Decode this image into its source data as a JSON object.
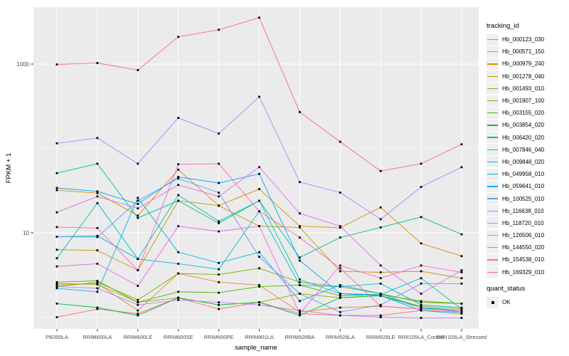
{
  "chart_data": {
    "type": "line",
    "title": "",
    "xlabel": "sample_name",
    "ylabel": "FPKM + 1",
    "y_scale": "log10",
    "y_tick_labels": [
      "1000",
      "10"
    ],
    "y_tick_values": [
      1000,
      10
    ],
    "y_minor_gridline_values": [
      100,
      1
    ],
    "ylim": [
      0.73,
      4700
    ],
    "grid": "on",
    "panel_background": "#EBEBEB",
    "gridline_color": "#FFFFFF",
    "point_color": "#000000",
    "axis_text_color": "#4D4D4D",
    "legend_position": "right",
    "categories": [
      "PB350LA",
      "RRIM600LA",
      "RRIM600LE",
      "RRIM600SE",
      "RRIM600PE",
      "RRIM901LA",
      "RRIM928BA",
      "RRIM928LA",
      "RRIM928LE",
      "RRII105LA_Control",
      "RRII105LA_Stressed"
    ],
    "legend_title": "tracking_id",
    "series": [
      {
        "name": "Hb_000123_030",
        "color": "#F8766D",
        "values": [
          1.0,
          1.25,
          1.1,
          1.7,
          1.25,
          1.5,
          1.1,
          1.05,
          1.05,
          1.2,
          1.15
        ]
      },
      {
        "name": "Hb_000571_150",
        "color": "#E98A2C",
        "values": [
          2.4,
          2.5,
          1.2,
          3.3,
          2.6,
          2.4,
          1.15,
          1.3,
          1.35,
          1.25,
          1.2
        ]
      },
      {
        "name": "Hb_000979_240",
        "color": "#D89000",
        "values": [
          32,
          29.6,
          16,
          56,
          21,
          33,
          12,
          11.5,
          20,
          7.5,
          5.3
        ]
      },
      {
        "name": "Hb_001278_040",
        "color": "#C09B00",
        "values": [
          6.3,
          6.2,
          3.6,
          24,
          21,
          12,
          11.6,
          3.5,
          3.4,
          3.5,
          2.9
        ]
      },
      {
        "name": "Hb_001493_010",
        "color": "#A3A500",
        "values": [
          2.5,
          2.45,
          1.5,
          1.7,
          1.4,
          1.5,
          1.9,
          1.7,
          1.8,
          1.35,
          1.25
        ]
      },
      {
        "name": "Hb_001907_100",
        "color": "#7CAE00",
        "values": [
          2.3,
          2.6,
          1.6,
          3.3,
          3.2,
          3.8,
          2.6,
          2.3,
          1.9,
          1.5,
          1.45
        ]
      },
      {
        "name": "Hb_003155_020",
        "color": "#49B500",
        "values": [
          2.6,
          2.7,
          1.5,
          2.0,
          1.95,
          2.3,
          2.4,
          1.8,
          1.85,
          1.55,
          1.45
        ]
      },
      {
        "name": "Hb_003854_020",
        "color": "#00BB44",
        "values": [
          1.45,
          1.3,
          1.05,
          1.7,
          1.4,
          1.5,
          1.05,
          1.7,
          1.8,
          1.3,
          1.2
        ]
      },
      {
        "name": "Hb_006420_020",
        "color": "#00C08B",
        "values": [
          51,
          66,
          15,
          24,
          13,
          24,
          5.1,
          8.8,
          11.6,
          15.4,
          9.6
        ]
      },
      {
        "name": "Hb_007846_040",
        "color": "#00C0B4",
        "values": [
          5.0,
          22.5,
          4.9,
          28,
          13.7,
          24,
          2.8,
          1.9,
          1.85,
          2.9,
          1.25
        ]
      },
      {
        "name": "Hb_009848_020",
        "color": "#00BDD4",
        "values": [
          9.0,
          9.2,
          4.9,
          4.3,
          3.7,
          18,
          2.4,
          2.3,
          2.5,
          1.4,
          1.3
        ]
      },
      {
        "name": "Hb_049958_010",
        "color": "#00B5EC",
        "values": [
          2.2,
          2.0,
          26,
          5.9,
          4.4,
          5.9,
          1.55,
          2.4,
          1.9,
          1.3,
          1.15
        ]
      },
      {
        "name": "Hb_059641_010",
        "color": "#00A6FF",
        "values": [
          34,
          31,
          22,
          46,
          39,
          50,
          4.7,
          1.9,
          1.8,
          1.2,
          1.1
        ]
      },
      {
        "name": "Hb_100525_010",
        "color": "#619CFF",
        "values": [
          9.0,
          8.9,
          24,
          44,
          30,
          5.2,
          1.9,
          1.15,
          1.4,
          2.5,
          2.5
        ]
      },
      {
        "name": "Hb_116638_010",
        "color": "#9590FF",
        "values": [
          115,
          133,
          66,
          230,
          150,
          410,
          40,
          30,
          14.5,
          35,
          60
        ]
      },
      {
        "name": "Hb_118720_010",
        "color": "#B983FF",
        "values": [
          2.3,
          2.2,
          1.4,
          1.6,
          1.5,
          1.4,
          1.2,
          1.05,
          1.0,
          0.98,
          0.98
        ]
      },
      {
        "name": "Hb_126506_010",
        "color": "#E06EF5",
        "values": [
          17.5,
          27,
          19.5,
          37,
          27,
          60,
          17,
          12,
          4.1,
          1.9,
          3.6
        ]
      },
      {
        "name": "Hb_144550_020",
        "color": "#F564E3",
        "values": [
          4.0,
          4.3,
          2.35,
          12,
          10.4,
          12,
          1.1,
          4.1,
          2.9,
          4.1,
          3.4
        ]
      },
      {
        "name": "Hb_154538_010",
        "color": "#FF61C7",
        "values": [
          11.7,
          11.4,
          3.6,
          65,
          66,
          18,
          8.8,
          3.8,
          1.35,
          1.25,
          1.2
        ]
      },
      {
        "name": "Hb_169329_010",
        "color": "#FF6390",
        "values": [
          990,
          1030,
          850,
          2100,
          2550,
          3550,
          270,
          120,
          54,
          66,
          112
        ]
      }
    ],
    "legend2": {
      "title": "quant_status",
      "items": [
        {
          "label": "OK",
          "marker": "black-square"
        }
      ]
    }
  }
}
